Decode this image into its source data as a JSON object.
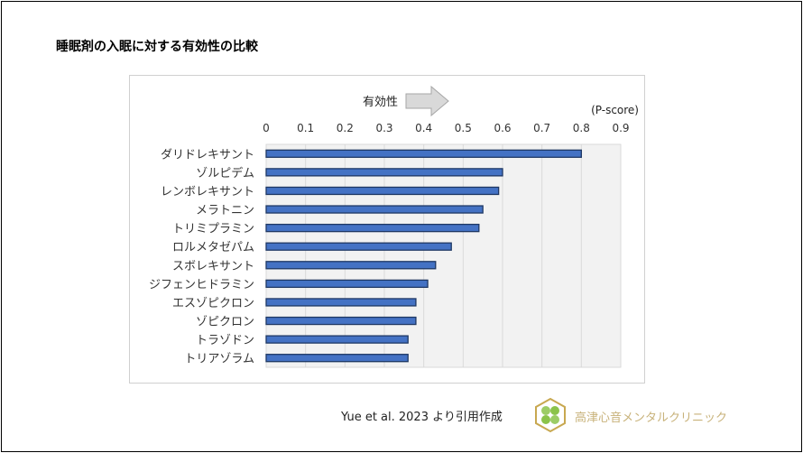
{
  "title": "睡眠剤の入眠に対する有効性の比較",
  "citation": "Yue et al. 2023 より引用作成",
  "logo_text": "高津心音メンタルクリニック",
  "chart_data": {
    "type": "bar",
    "orientation": "horizontal",
    "annotation": "有効性",
    "unit_label": "(P-score)",
    "categories": [
      "ダリドレキサント",
      "ゾルピデム",
      "レンボレキサント",
      "メラトニン",
      "トリミプラミン",
      "ロルメタゼパム",
      "スボレキサント",
      "ジフェンヒドラミン",
      "エスゾピクロン",
      "ゾピクロン",
      "トラゾドン",
      "トリアゾラム"
    ],
    "values": [
      0.8,
      0.6,
      0.59,
      0.55,
      0.54,
      0.47,
      0.43,
      0.41,
      0.38,
      0.38,
      0.36,
      0.36
    ],
    "xlim": [
      0,
      0.9
    ],
    "ticks": [
      "0",
      "0.1",
      "0.2",
      "0.3",
      "0.4",
      "0.5",
      "0.6",
      "0.7",
      "0.8",
      "0.9"
    ],
    "grid": true,
    "bar_color": "#4472c4",
    "bar_edge": "#1f3864"
  }
}
